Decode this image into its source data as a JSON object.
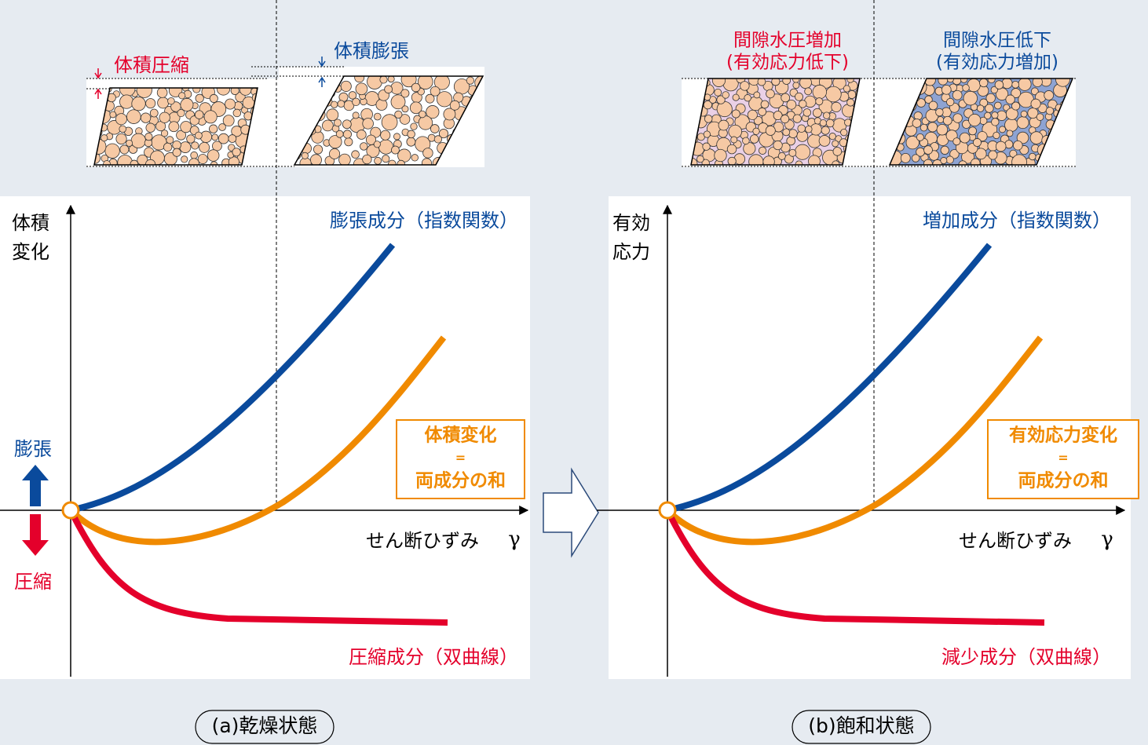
{
  "panels": [
    {
      "sample_labels": [
        [
          "体積圧縮"
        ],
        [
          "体積膨張"
        ]
      ],
      "y_axis_label": [
        "体積",
        "変化"
      ],
      "up_label": "膨張",
      "down_label": "圧縮",
      "upper_curve_label": "膨張成分（指数関数）",
      "sum_box": [
        "体積変化",
        "=",
        "両成分の和"
      ],
      "x_axis_label": "せん断ひずみ",
      "x_axis_symbol": "γ",
      "lower_curve_label": "圧縮成分（双曲線）",
      "caption": "(a)乾燥状態"
    },
    {
      "sample_labels": [
        [
          "間隙水圧増加",
          "(有効応力低下)"
        ],
        [
          "間隙水圧低下",
          "(有効応力増加)"
        ]
      ],
      "y_axis_label": [
        "有効",
        "応力"
      ],
      "upper_curve_label": "増加成分（指数関数）",
      "sum_box": [
        "有効応力変化",
        "=",
        "両成分の和"
      ],
      "x_axis_label": "せん断ひずみ",
      "x_axis_symbol": "γ",
      "lower_curve_label": "減少成分（双曲線）",
      "caption": "(b)飽和状態"
    }
  ]
}
